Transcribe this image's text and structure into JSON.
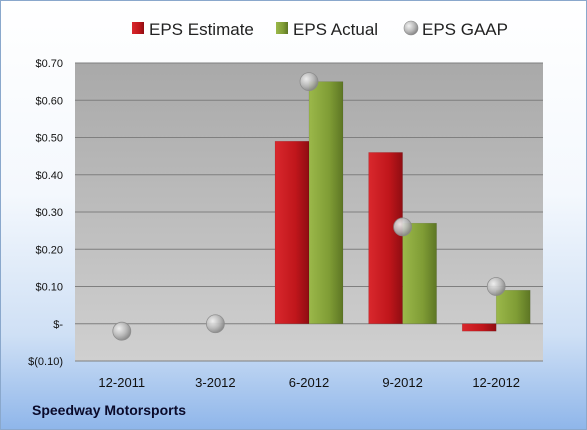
{
  "company": "Speedway Motorsports",
  "chart_data": {
    "type": "bar",
    "categories": [
      "12-2011",
      "3-2012",
      "6-2012",
      "9-2012",
      "12-2012"
    ],
    "series": [
      {
        "name": "EPS Estimate",
        "kind": "bar",
        "color": "#c0161b",
        "values": [
          null,
          null,
          0.49,
          0.46,
          -0.02
        ]
      },
      {
        "name": "EPS Actual",
        "kind": "bar",
        "color": "#7f9c35",
        "values": [
          null,
          null,
          0.65,
          0.27,
          0.09
        ]
      },
      {
        "name": "EPS GAAP",
        "kind": "marker",
        "color": "#a6a6a6",
        "values": [
          -0.02,
          0.0,
          0.65,
          0.26,
          0.1
        ]
      }
    ],
    "y_ticks": [
      "$0.70",
      "$0.60",
      "$0.50",
      "$0.40",
      "$0.30",
      "$0.20",
      "$0.10",
      "$-",
      "$(0.10)"
    ],
    "y_tick_values": [
      0.7,
      0.6,
      0.5,
      0.4,
      0.3,
      0.2,
      0.1,
      0.0,
      -0.1
    ],
    "ylim": [
      -0.1,
      0.7
    ],
    "grid": true,
    "legend_position": "top"
  }
}
